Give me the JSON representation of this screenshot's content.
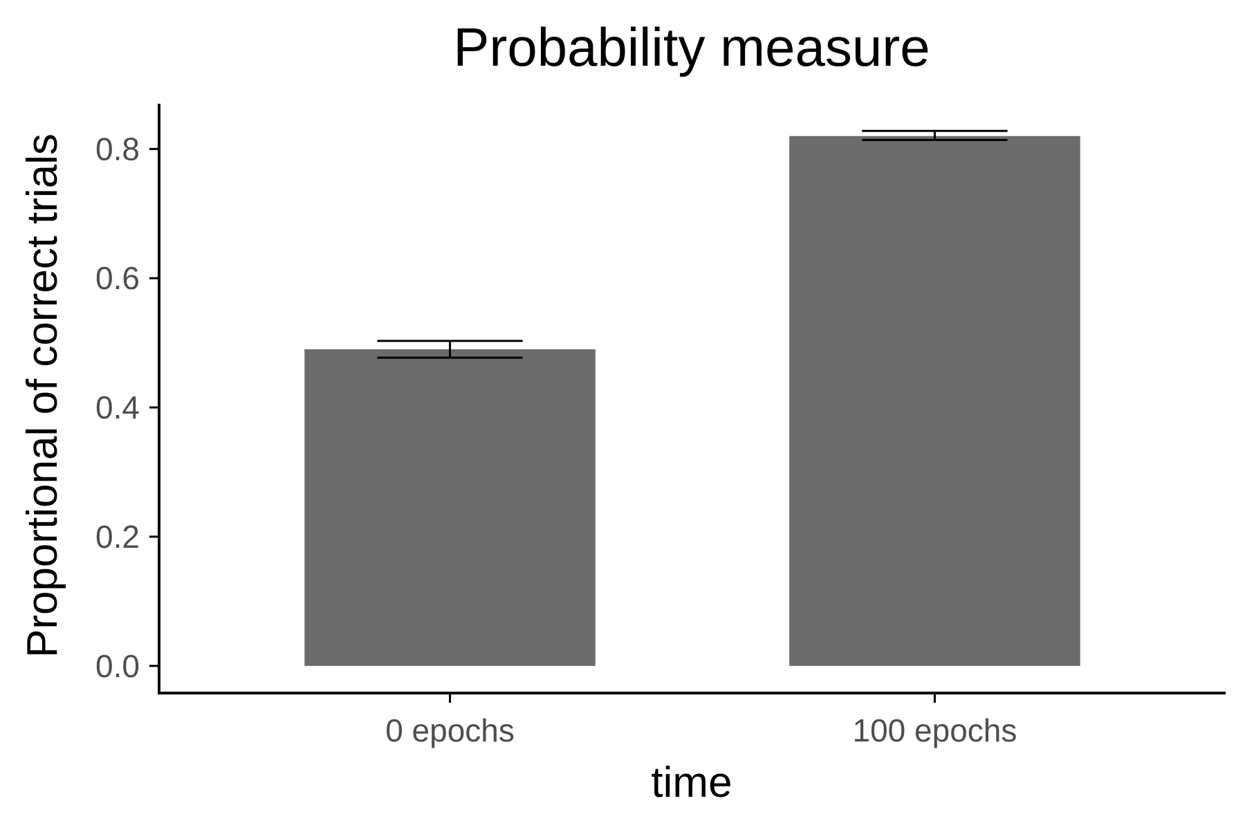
{
  "chart_data": {
    "type": "bar",
    "title": "Probability measure",
    "xlabel": "time",
    "ylabel": "Proportional of correct trials",
    "categories": [
      "0 epochs",
      "100 epochs"
    ],
    "values": [
      0.49,
      0.82
    ],
    "error_bars": [
      {
        "low": 0.477,
        "high": 0.503
      },
      {
        "low": 0.814,
        "high": 0.828
      }
    ],
    "ylim": [
      -0.042,
      0.87
    ],
    "yticks": [
      0.0,
      0.2,
      0.4,
      0.6,
      0.8
    ],
    "ytick_labels": [
      "0.0",
      "0.2",
      "0.4",
      "0.6",
      "0.8"
    ],
    "grid": false,
    "legend": "none",
    "colors": {
      "bar": "#6b6b6b",
      "axis": "#000000",
      "tick_text": "#4d4d4d",
      "error_bar": "#000000"
    }
  }
}
